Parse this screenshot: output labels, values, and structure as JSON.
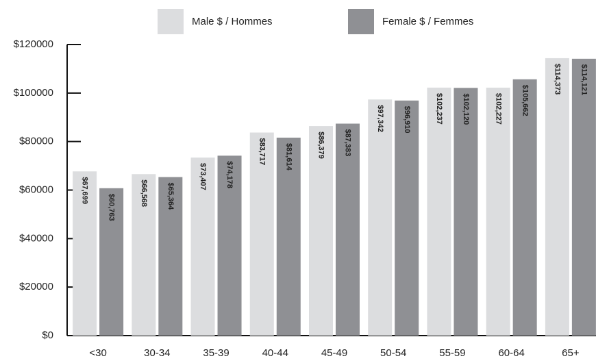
{
  "chart_data": {
    "type": "bar",
    "categories": [
      "<30",
      "30-34",
      "35-39",
      "40-44",
      "45-49",
      "50-54",
      "55-59",
      "60-64",
      "65+"
    ],
    "series": [
      {
        "name": "Male $ / Hommes",
        "color": "#dcdddf",
        "label_color": "#111111",
        "values": [
          67699,
          66568,
          73407,
          83717,
          86379,
          97342,
          102237,
          102227,
          114373
        ],
        "value_labels": [
          "$67,699",
          "$66,568",
          "$73,407",
          "$83,717",
          "$86,379",
          "$97,342",
          "$102,237",
          "$102,227",
          "$114,373"
        ]
      },
      {
        "name": "Female $ / Femmes",
        "color": "#8f9094",
        "label_color": "#ffffff",
        "values": [
          60763,
          65364,
          74178,
          81614,
          87383,
          96910,
          102120,
          105662,
          114121
        ],
        "value_labels": [
          "$60,763",
          "$65,364",
          "$74,178",
          "$81,614",
          "$87,383",
          "$96,910",
          "$102,120",
          "$105,662",
          "$114,121"
        ]
      }
    ],
    "ylim": [
      0,
      120000
    ],
    "yticks": [
      {
        "value": 0,
        "label": "$0"
      },
      {
        "value": 20000,
        "label": "$20000"
      },
      {
        "value": 40000,
        "label": "$40000"
      },
      {
        "value": 60000,
        "label": "$60000"
      },
      {
        "value": 80000,
        "label": "$80000"
      },
      {
        "value": 100000,
        "label": "$100000"
      },
      {
        "value": 120000,
        "label": "$120000"
      }
    ]
  }
}
